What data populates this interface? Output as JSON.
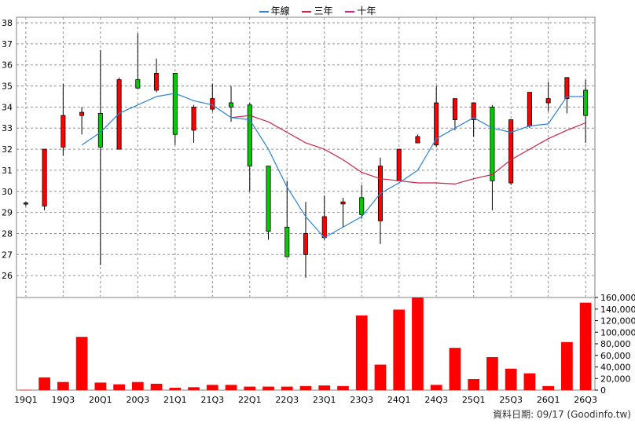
{
  "chart_data": {
    "type": "candlestick",
    "legend": [
      "年線",
      "三年",
      "十年"
    ],
    "colors": {
      "ma_year": "#2e84d6",
      "ma_3y": "#cc2244",
      "ma_10y": "#cc2288",
      "up": "#ff0000",
      "down": "#00cc00",
      "volume": "#ff0000",
      "grid": "#909090",
      "frame": "#808080"
    },
    "x_tick_labels": [
      "19Q1",
      "19Q3",
      "20Q1",
      "20Q3",
      "21Q1",
      "21Q3",
      "22Q1",
      "22Q3",
      "23Q1",
      "23Q3",
      "24Q1",
      "24Q3",
      "25Q1",
      "25Q3",
      "26Q1",
      "26Q3"
    ],
    "price_axis": {
      "ylim": [
        25,
        38
      ],
      "ticks": [
        26,
        27,
        28,
        29,
        30,
        31,
        32,
        33,
        34,
        35,
        36,
        37,
        38
      ]
    },
    "volume_axis": {
      "ylim": [
        0,
        160000
      ],
      "ticks": [
        0,
        20000,
        40000,
        60000,
        80000,
        100000,
        120000,
        140000,
        160000
      ],
      "tick_labels": [
        "0",
        "20,000",
        "40,000",
        "60,000",
        "80,000",
        "100,000",
        "120,000",
        "140,000",
        "160,000"
      ]
    },
    "quarters": [
      "19Q1",
      "19Q2",
      "19Q3",
      "19Q4",
      "20Q1",
      "20Q2",
      "20Q3",
      "20Q4",
      "21Q1",
      "21Q2",
      "21Q3",
      "21Q4",
      "22Q1",
      "22Q2",
      "22Q3",
      "22Q4",
      "23Q1",
      "23Q2",
      "23Q3",
      "23Q4",
      "24Q1",
      "24Q2",
      "24Q3",
      "24Q4",
      "25Q1",
      "25Q2",
      "25Q3",
      "25Q4",
      "26Q1",
      "26Q2",
      "26Q3"
    ],
    "ohlc": [
      [
        29.4,
        29.5,
        29.3,
        29.45
      ],
      [
        29.3,
        32.0,
        29.1,
        32.0
      ],
      [
        32.1,
        35.1,
        31.7,
        33.6
      ],
      [
        33.6,
        34.0,
        32.7,
        33.75
      ],
      [
        33.7,
        36.7,
        26.5,
        32.1
      ],
      [
        32.0,
        35.4,
        32.0,
        35.3
      ],
      [
        35.3,
        37.5,
        34.9,
        34.9
      ],
      [
        34.8,
        36.3,
        34.7,
        35.6
      ],
      [
        35.6,
        35.6,
        32.2,
        32.7
      ],
      [
        32.9,
        34.1,
        32.3,
        34.0
      ],
      [
        33.9,
        35.1,
        33.8,
        34.4
      ],
      [
        34.2,
        35.0,
        33.3,
        34.0
      ],
      [
        34.1,
        34.2,
        30.0,
        31.2
      ],
      [
        31.2,
        31.2,
        27.7,
        28.1
      ],
      [
        28.3,
        30.5,
        26.9,
        26.9
      ],
      [
        27.0,
        29.5,
        25.9,
        28.0
      ],
      [
        27.8,
        29.8,
        27.7,
        28.8
      ],
      [
        29.4,
        29.7,
        28.3,
        29.5
      ],
      [
        29.7,
        30.3,
        28.7,
        28.9
      ],
      [
        28.6,
        31.6,
        27.5,
        31.2
      ],
      [
        30.5,
        32.0,
        30.5,
        32.0
      ],
      [
        32.3,
        32.7,
        32.3,
        32.6
      ],
      [
        32.2,
        35.0,
        32.1,
        34.2
      ],
      [
        33.4,
        34.4,
        32.9,
        34.4
      ],
      [
        33.4,
        34.2,
        32.6,
        34.2
      ],
      [
        34.0,
        34.1,
        29.1,
        30.5
      ],
      [
        30.4,
        33.4,
        30.3,
        33.4
      ],
      [
        33.1,
        34.7,
        33.0,
        34.7
      ],
      [
        34.2,
        35.2,
        33.8,
        34.4
      ],
      [
        34.4,
        35.4,
        33.7,
        35.4
      ],
      [
        34.8,
        35.3,
        32.3,
        33.6
      ]
    ],
    "volume": [
      500,
      22000,
      14000,
      92000,
      13000,
      10000,
      14000,
      11000,
      4000,
      5000,
      9000,
      9000,
      6000,
      6000,
      6000,
      7000,
      8000,
      7000,
      129000,
      44000,
      139000,
      160000,
      9000,
      73000,
      19000,
      57000,
      37000,
      29000,
      7000,
      83000,
      151000
    ],
    "ma_year": [
      null,
      null,
      null,
      32.2,
      32.8,
      33.7,
      34.1,
      34.5,
      34.65,
      34.3,
      34.1,
      33.5,
      33.4,
      32.0,
      30.2,
      28.8,
      27.8,
      28.3,
      28.8,
      29.9,
      30.4,
      31.0,
      32.5,
      33.0,
      33.5,
      33.0,
      32.8,
      33.1,
      33.2,
      34.5,
      34.5
    ],
    "ma_3y": [
      null,
      null,
      null,
      null,
      null,
      null,
      null,
      null,
      null,
      null,
      null,
      33.5,
      33.6,
      33.3,
      32.8,
      32.3,
      32.0,
      31.5,
      30.9,
      30.6,
      30.5,
      30.4,
      30.4,
      30.35,
      30.6,
      30.8,
      31.5,
      32.0,
      32.5,
      32.9,
      33.25
    ],
    "ma_10y": []
  },
  "source": {
    "label": "資料日期: 09/17  (Goodinfo.tw)"
  }
}
